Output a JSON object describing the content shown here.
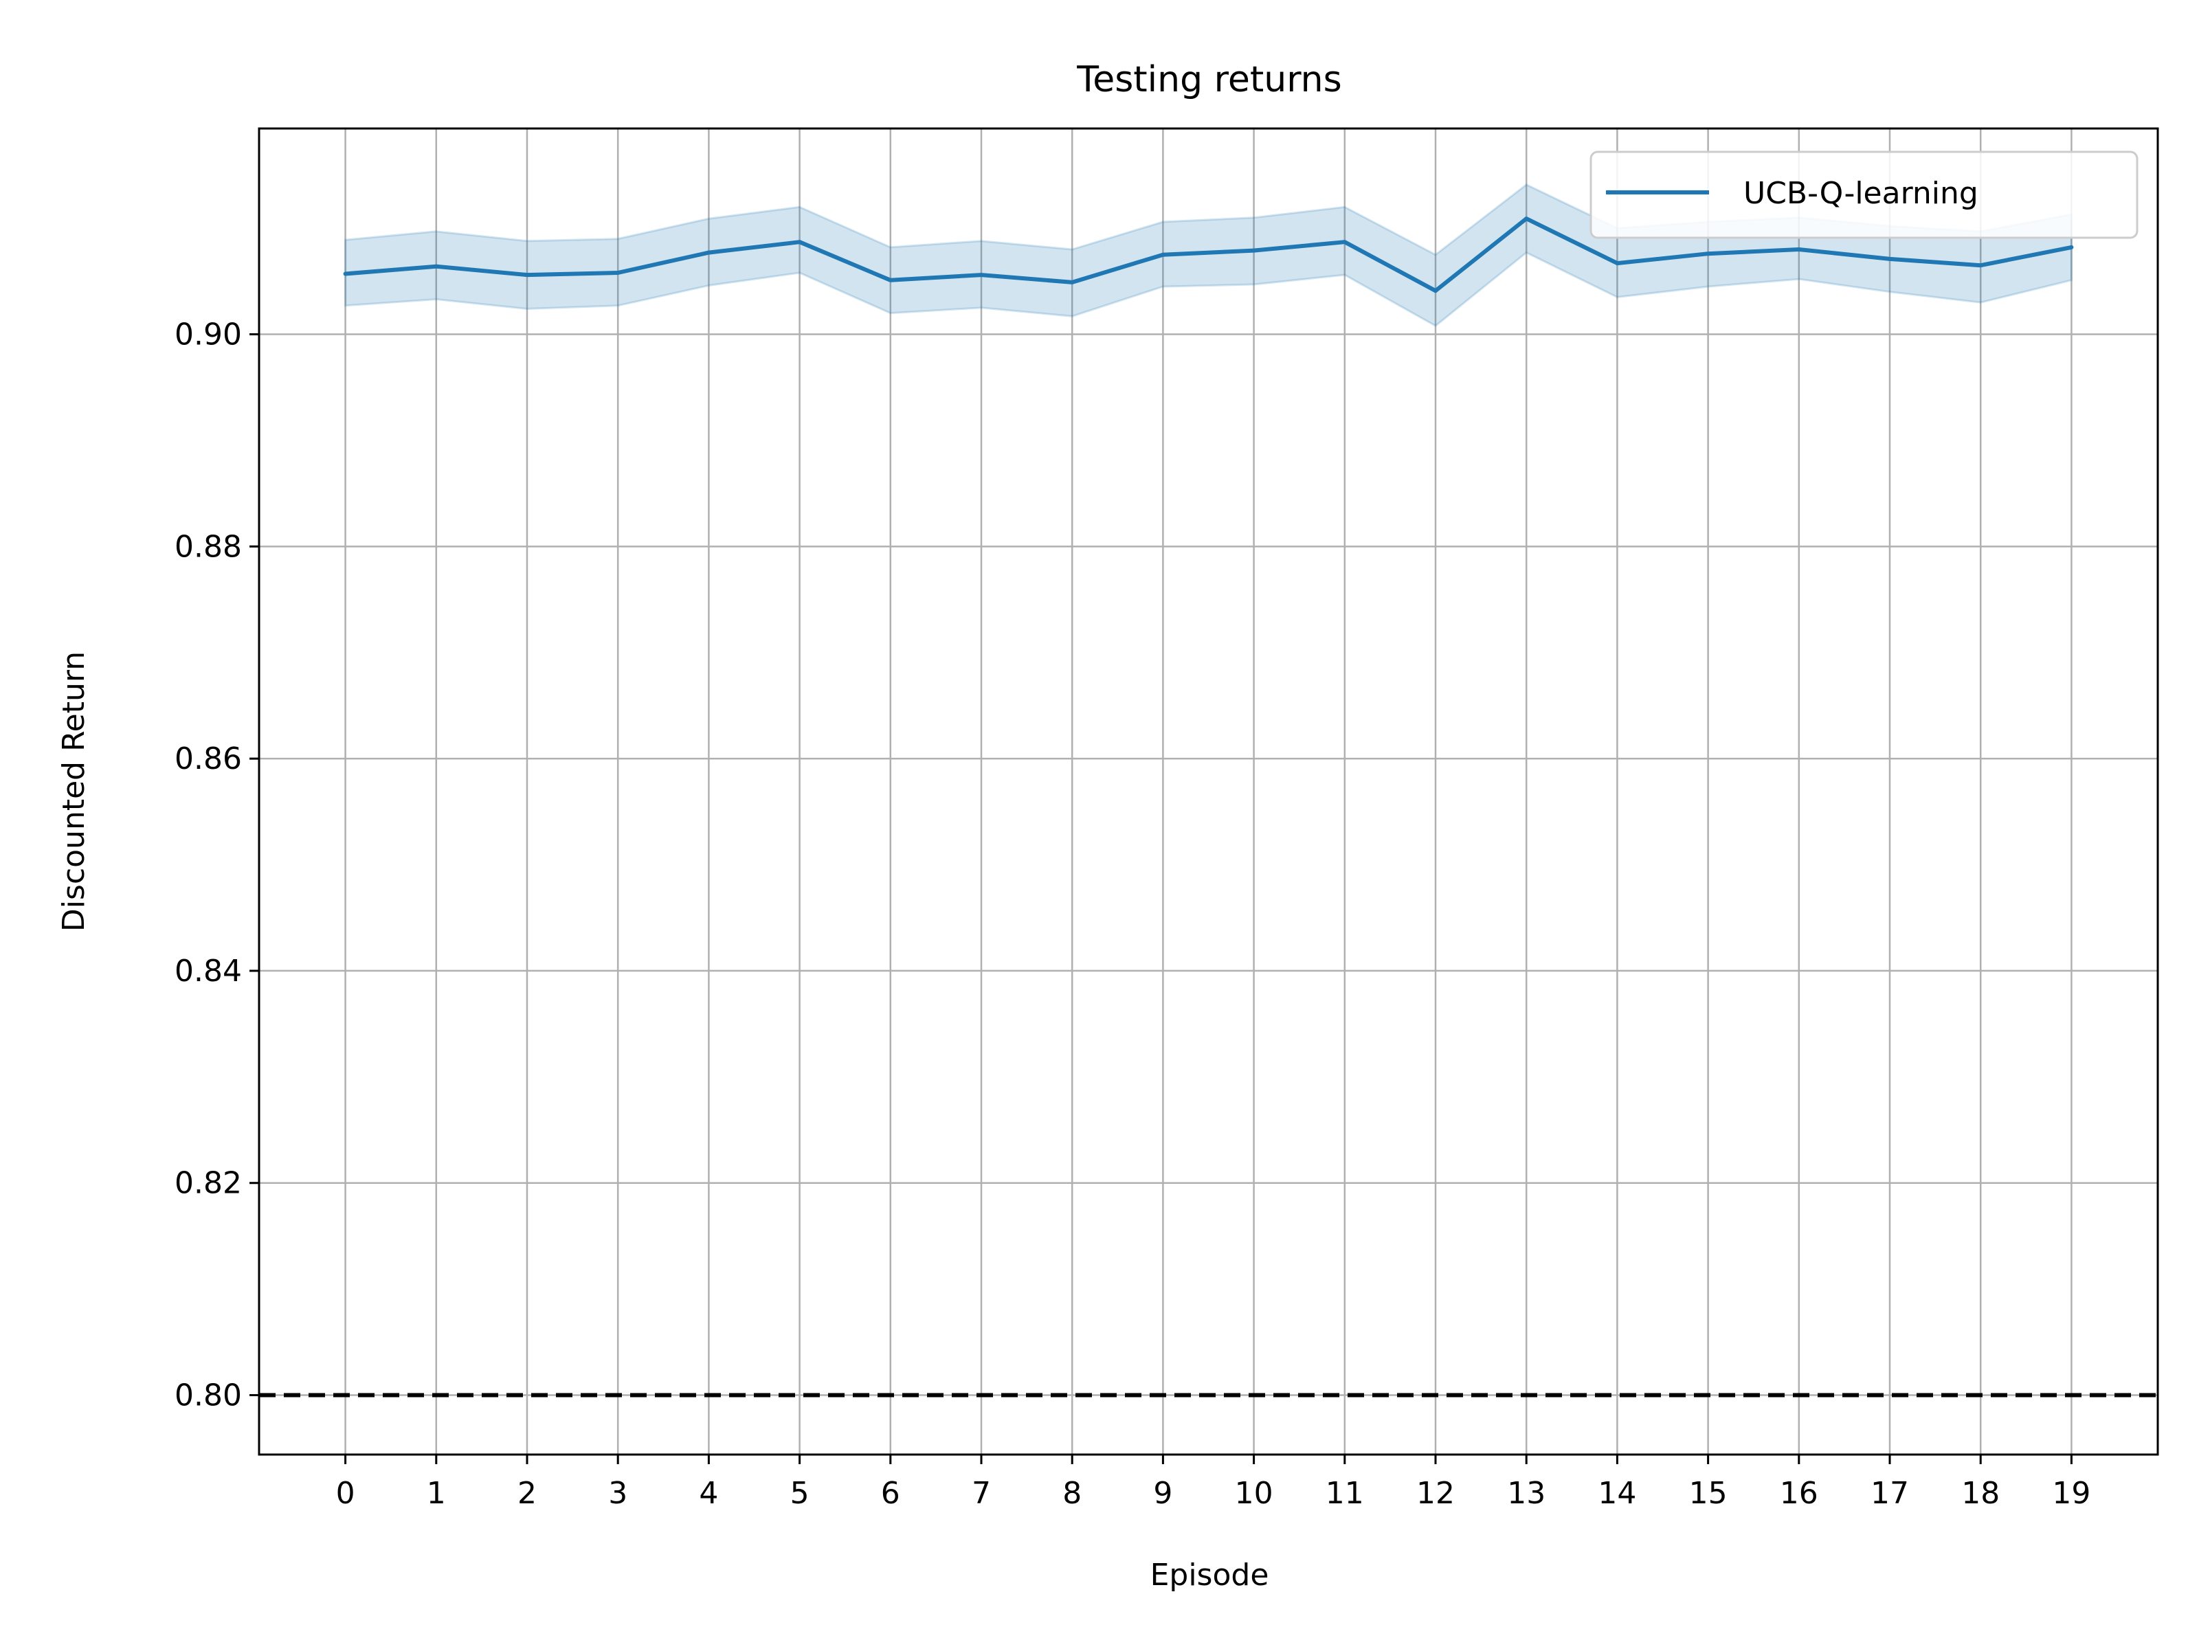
{
  "chart_data": {
    "type": "line",
    "title": "Testing returns",
    "xlabel": "Episode",
    "ylabel": "Discounted Return",
    "x": [
      0,
      1,
      2,
      3,
      4,
      5,
      6,
      7,
      8,
      9,
      10,
      11,
      12,
      13,
      14,
      15,
      16,
      17,
      18,
      19
    ],
    "x_tick_labels": [
      "0",
      "1",
      "2",
      "3",
      "4",
      "5",
      "6",
      "7",
      "8",
      "9",
      "10",
      "11",
      "12",
      "13",
      "14",
      "15",
      "16",
      "17",
      "18",
      "19"
    ],
    "xlim": [
      -0.95,
      19.95
    ],
    "ylim": [
      0.7944,
      0.9194
    ],
    "y_ticks": [
      0.8,
      0.82,
      0.84,
      0.86,
      0.88,
      0.9
    ],
    "y_tick_labels": [
      "0.80",
      "0.82",
      "0.84",
      "0.86",
      "0.88",
      "0.90"
    ],
    "grid": true,
    "legend_position": "top-right",
    "series": [
      {
        "name": "UCB-Q-learning",
        "color": "#1f77b4",
        "values": [
          0.9057,
          0.9064,
          0.9056,
          0.9058,
          0.9077,
          0.9087,
          0.9051,
          0.9056,
          0.9049,
          0.9075,
          0.9079,
          0.9087,
          0.9041,
          0.9109,
          0.9067,
          0.9076,
          0.908,
          0.9071,
          0.9065,
          0.9082
        ],
        "upper": [
          0.9089,
          0.9097,
          0.9088,
          0.909,
          0.9109,
          0.912,
          0.9082,
          0.9088,
          0.908,
          0.9106,
          0.911,
          0.912,
          0.9075,
          0.9141,
          0.91,
          0.9106,
          0.911,
          0.9102,
          0.9097,
          0.9113
        ],
        "lower": [
          0.9027,
          0.9033,
          0.9024,
          0.9027,
          0.9046,
          0.9058,
          0.902,
          0.9025,
          0.9017,
          0.9045,
          0.9047,
          0.9056,
          0.9008,
          0.9077,
          0.9035,
          0.9045,
          0.9052,
          0.904,
          0.903,
          0.9051
        ],
        "band_color": "#1f77b4"
      }
    ],
    "reference_line": {
      "y": 0.8,
      "style": "dashed",
      "color": "#000000"
    }
  }
}
